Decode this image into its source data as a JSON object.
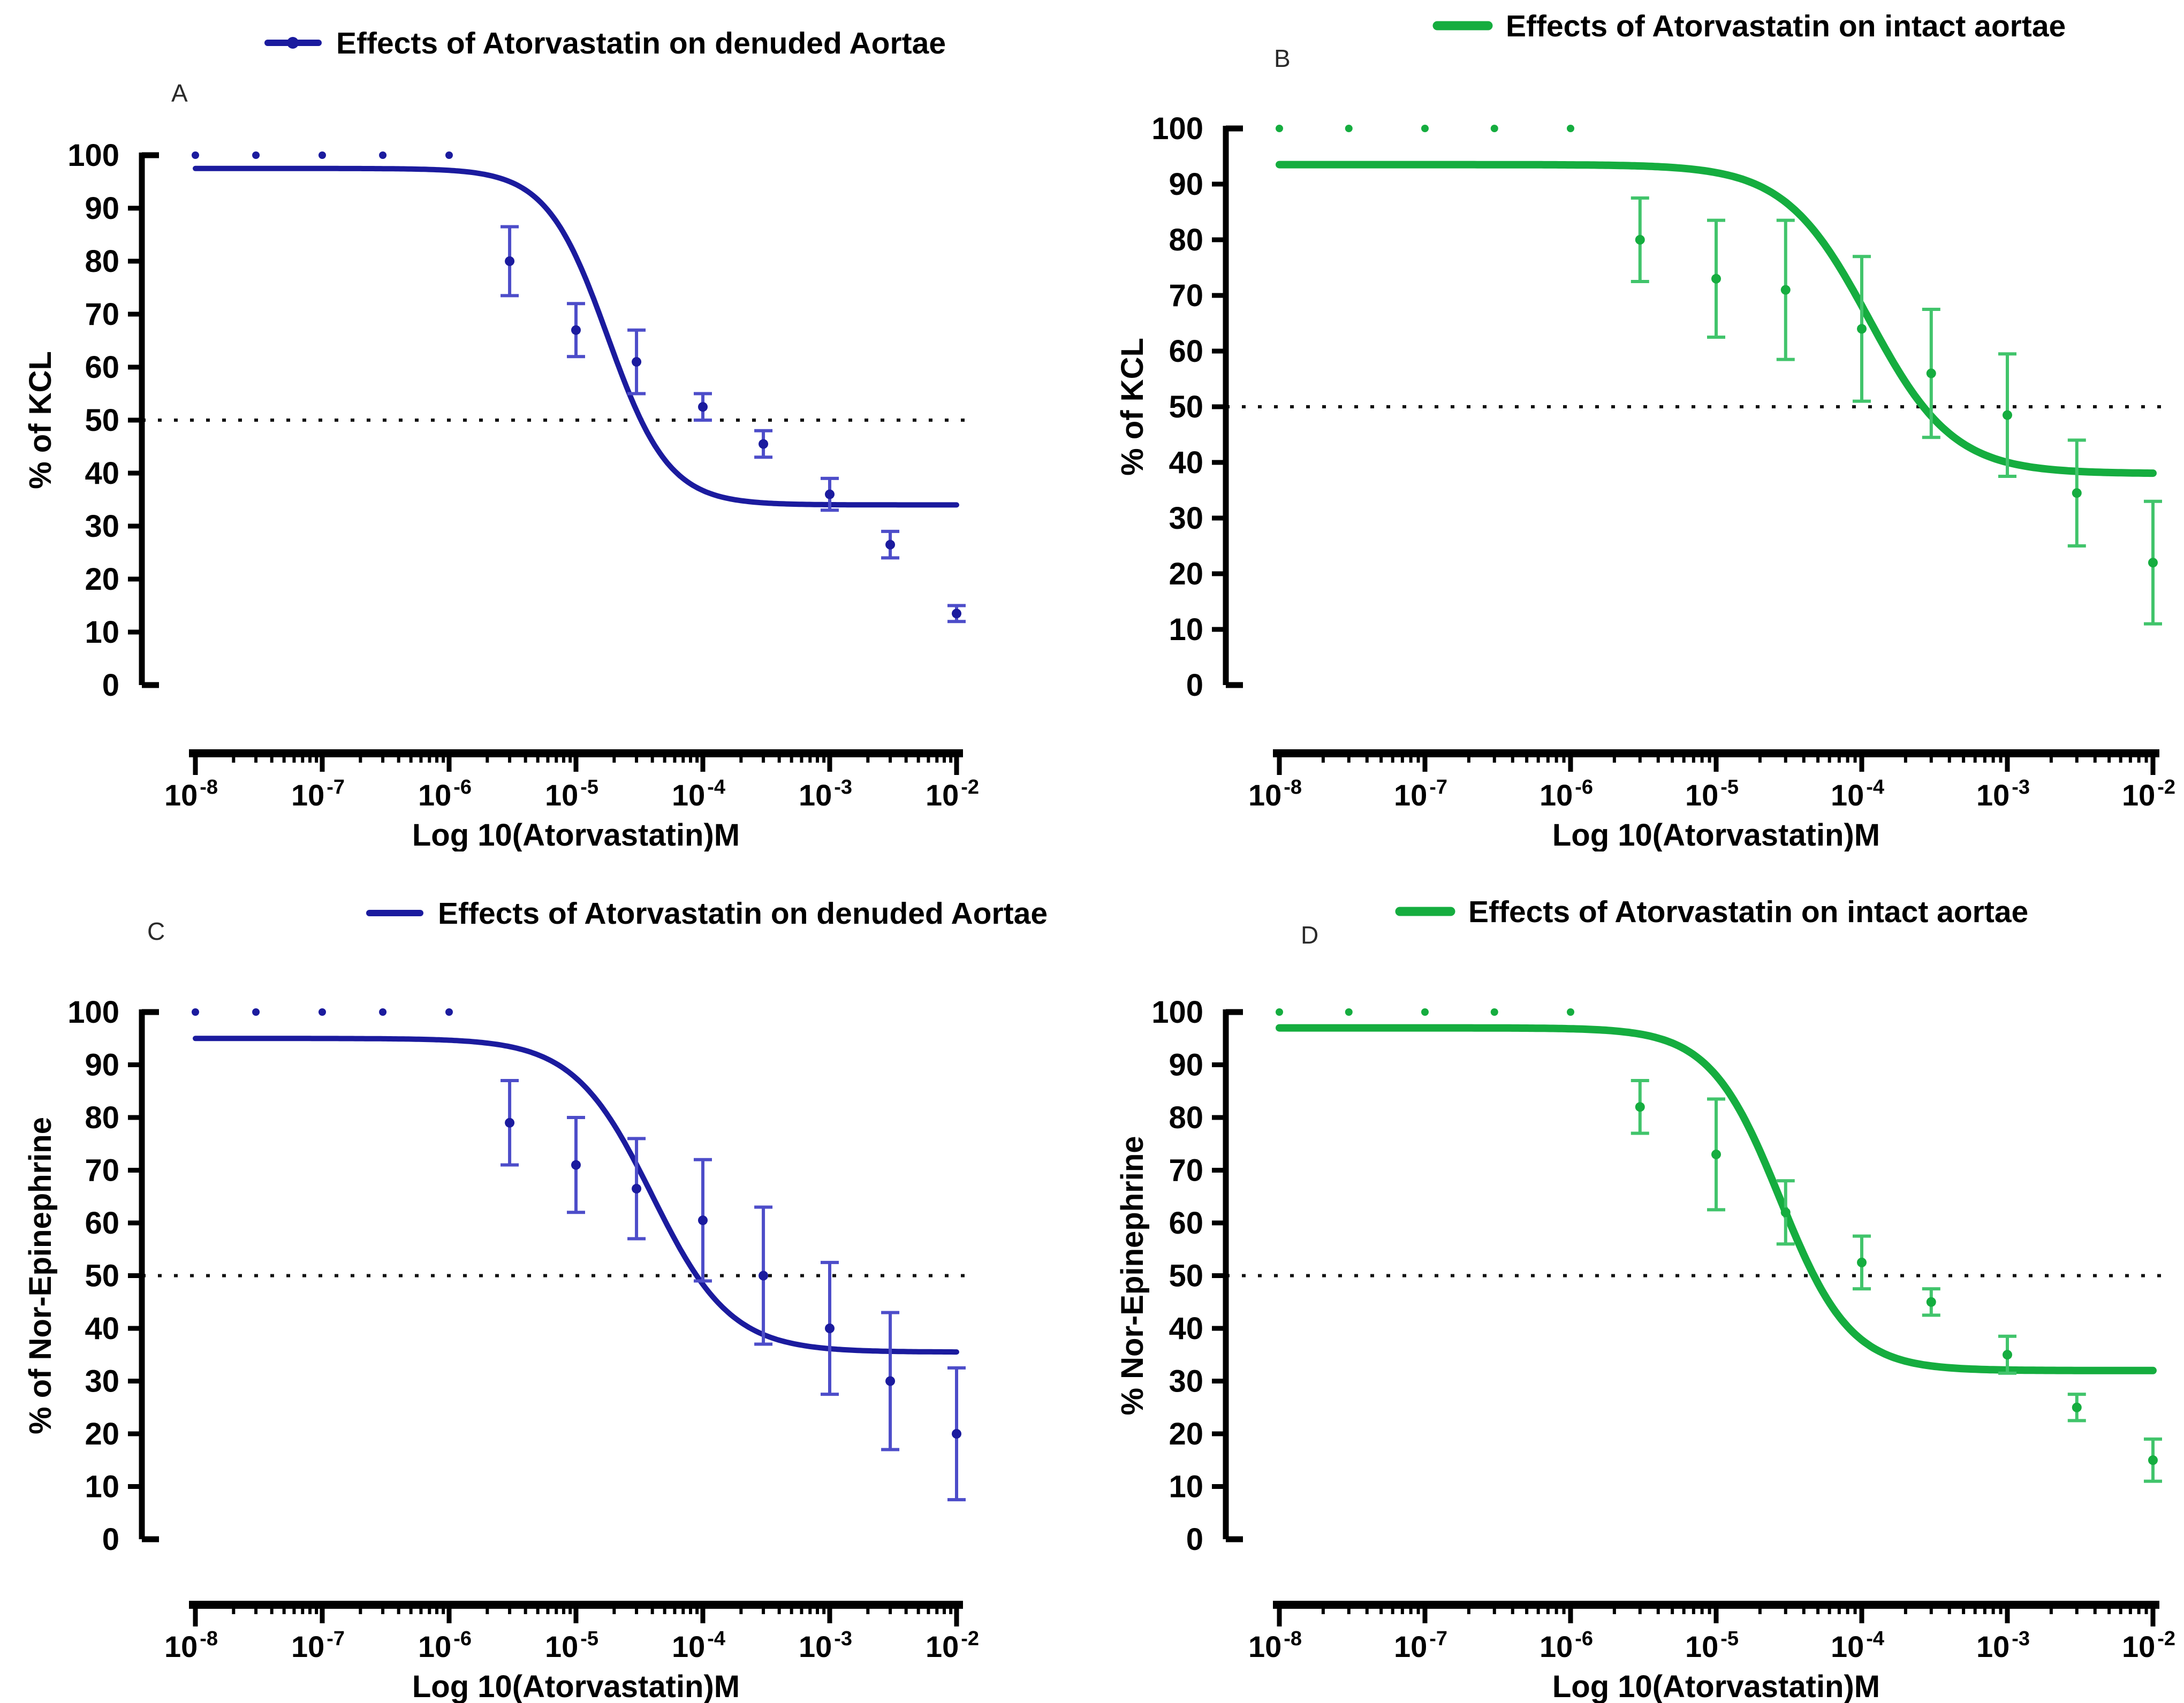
{
  "figure": {
    "background": "#ffffff",
    "reference_line_color": "#111111"
  },
  "colors": {
    "denuded_blue": "#1B1B9E",
    "denuded_blue_light": "#4D4DC9",
    "intact_green": "#15AD3F",
    "intact_green_light": "#41C46B",
    "axis_black": "#000000",
    "panel_letter_gray": "#2a2a2a"
  },
  "chart_data": [
    {
      "panel": "A",
      "type": "scatter",
      "title": "Effects of Atorvastatin on denuded Aortae",
      "legend_position": "top",
      "legend_marker": "dash-with-dot",
      "series_color_key": "denuded_blue",
      "errorbar_color_key": "denuded_blue_light",
      "xlabel": "Log 10(Atorvastatin)M",
      "ylabel": "% of KCL",
      "xscale": "log",
      "xlim_exponents": [
        -8,
        -2
      ],
      "x_tick_exponents": [
        -8,
        -7,
        -6,
        -5,
        -4,
        -3,
        -2
      ],
      "x_tick_base": "10",
      "ylim": [
        0,
        100
      ],
      "yticks": [
        0,
        10,
        20,
        30,
        40,
        50,
        60,
        70,
        80,
        90,
        100
      ],
      "grid": false,
      "reference_line_y": 50,
      "points": {
        "x": [
          1e-08,
          3e-08,
          1e-07,
          3e-07,
          1e-06,
          3e-06,
          1e-05,
          3e-05,
          0.0001,
          0.0003,
          0.001,
          0.003,
          0.01
        ],
        "y": [
          100,
          100,
          100,
          100,
          100,
          80,
          67,
          61,
          52.5,
          45.5,
          36,
          26.5,
          13.5
        ],
        "yerr": [
          0,
          0,
          0,
          0,
          0,
          6.5,
          5,
          6,
          2.5,
          2.5,
          3,
          2.5,
          1.5
        ]
      },
      "fit_curve": {
        "model": "4PL",
        "top": 97.5,
        "bottom": 34,
        "log_ic50": -4.75,
        "hill": 1.8
      }
    },
    {
      "panel": "B",
      "type": "scatter",
      "title": "Effects of Atorvastatin on intact aortae",
      "legend_position": "top",
      "legend_marker": "dash",
      "series_color_key": "intact_green",
      "errorbar_color_key": "intact_green_light",
      "xlabel": "Log 10(Atorvastatin)M",
      "ylabel": "% of KCL",
      "xscale": "log",
      "xlim_exponents": [
        -8,
        -2
      ],
      "x_tick_exponents": [
        -8,
        -7,
        -6,
        -5,
        -4,
        -3,
        -2
      ],
      "x_tick_base": "10",
      "ylim": [
        0,
        100
      ],
      "yticks": [
        0,
        10,
        20,
        30,
        40,
        50,
        60,
        70,
        80,
        90,
        100
      ],
      "grid": false,
      "reference_line_y": 50,
      "points": {
        "x": [
          1e-08,
          3e-08,
          1e-07,
          3e-07,
          1e-06,
          3e-06,
          1e-05,
          3e-05,
          0.0001,
          0.0003,
          0.001,
          0.003,
          0.01
        ],
        "y": [
          100,
          100,
          100,
          100,
          100,
          80,
          73,
          71,
          64,
          56,
          48.5,
          34.5,
          22
        ],
        "yerr": [
          0,
          0,
          0,
          0,
          0,
          7.5,
          10.5,
          12.5,
          13,
          11.5,
          11,
          9.5,
          11
        ]
      },
      "fit_curve": {
        "model": "4PL",
        "top": 93.5,
        "bottom": 38,
        "log_ic50": -3.95,
        "hill": 1.5
      }
    },
    {
      "panel": "C",
      "type": "scatter",
      "title": "Effects of Atorvastatin on denuded Aortae",
      "legend_position": "top",
      "legend_marker": "dash",
      "series_color_key": "denuded_blue",
      "errorbar_color_key": "denuded_blue_light",
      "xlabel": "Log 10(Atorvastatin)M",
      "ylabel": "% of Nor-Epinephrine",
      "xscale": "log",
      "xlim_exponents": [
        -8,
        -2
      ],
      "x_tick_exponents": [
        -8,
        -7,
        -6,
        -5,
        -4,
        -3,
        -2
      ],
      "x_tick_base": "10",
      "ylim": [
        0,
        100
      ],
      "yticks": [
        0,
        10,
        20,
        30,
        40,
        50,
        60,
        70,
        80,
        90,
        100
      ],
      "grid": false,
      "reference_line_y": 50,
      "points": {
        "x": [
          1e-08,
          3e-08,
          1e-07,
          3e-07,
          1e-06,
          3e-06,
          1e-05,
          3e-05,
          0.0001,
          0.0003,
          0.001,
          0.003,
          0.01
        ],
        "y": [
          100,
          100,
          100,
          100,
          100,
          79,
          71,
          66.5,
          60.5,
          50,
          40,
          30,
          20
        ],
        "yerr": [
          0,
          0,
          0,
          0,
          0,
          8,
          9,
          9.5,
          11.5,
          13,
          12.5,
          13,
          12.5
        ]
      },
      "fit_curve": {
        "model": "4PL",
        "top": 95,
        "bottom": 35.5,
        "log_ic50": -4.4,
        "hill": 1.4
      }
    },
    {
      "panel": "D",
      "type": "scatter",
      "title": "Effects of Atorvastatin on intact aortae",
      "legend_position": "top",
      "legend_marker": "dash",
      "series_color_key": "intact_green",
      "errorbar_color_key": "intact_green_light",
      "xlabel": "Log 10(Atorvastatin)M",
      "ylabel": "% Nor-Epinephrine",
      "xscale": "log",
      "xlim_exponents": [
        -8,
        -2
      ],
      "x_tick_exponents": [
        -8,
        -7,
        -6,
        -5,
        -4,
        -3,
        -2
      ],
      "x_tick_base": "10",
      "ylim": [
        0,
        100
      ],
      "yticks": [
        0,
        10,
        20,
        30,
        40,
        50,
        60,
        70,
        80,
        90,
        100
      ],
      "grid": false,
      "reference_line_y": 50,
      "points": {
        "x": [
          1e-08,
          3e-08,
          1e-07,
          3e-07,
          1e-06,
          3e-06,
          1e-05,
          3e-05,
          0.0001,
          0.0003,
          0.001,
          0.003,
          0.01
        ],
        "y": [
          100,
          100,
          100,
          100,
          100,
          82,
          73,
          62,
          52.5,
          45,
          35,
          25,
          15
        ],
        "yerr": [
          0,
          0,
          0,
          0,
          0,
          5,
          10.5,
          6,
          5,
          2.5,
          3.5,
          2.5,
          4
        ]
      },
      "fit_curve": {
        "model": "4PL",
        "top": 97,
        "bottom": 32,
        "log_ic50": -4.56,
        "hill": 1.8
      }
    }
  ]
}
